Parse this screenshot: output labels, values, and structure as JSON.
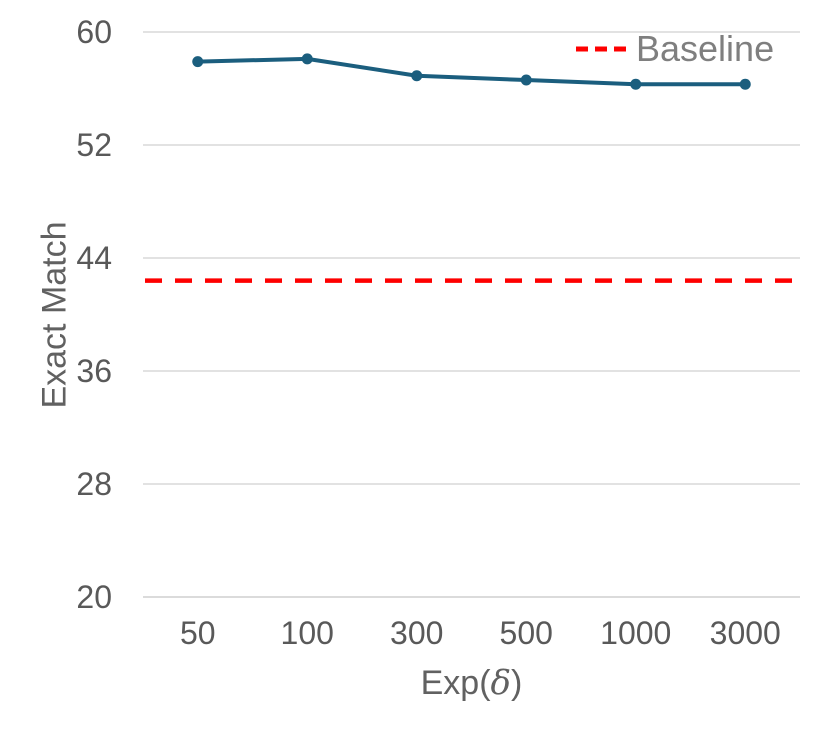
{
  "chart_data": {
    "type": "line",
    "xlabel": "Exp(δ)",
    "xlabel_parts": {
      "prefix": "Exp(",
      "symbol": "δ",
      "suffix": ")"
    },
    "ylabel": "Exact Match",
    "categories": [
      "50",
      "100",
      "300",
      "500",
      "1000",
      "3000"
    ],
    "series": [
      {
        "name": "Exact Match",
        "values": [
          57.9,
          58.1,
          56.9,
          56.6,
          56.3,
          56.3
        ],
        "color": "#1b5e7e",
        "marker": "circle",
        "style": "solid"
      }
    ],
    "baseline": {
      "label": "Baseline",
      "value": 42.4,
      "color": "#fe0000",
      "style": "dashed"
    },
    "ylim": [
      20,
      60
    ],
    "y_ticks": [
      60,
      52,
      44,
      36,
      28,
      20
    ],
    "grid": "horizontal",
    "legend_position": "top-right",
    "colors": {
      "axis_text": "#595959",
      "axis_title_text": "#616161",
      "legend_text": "#7f7f7f",
      "gridline": "#d9d9d9",
      "background": "#ffffff"
    }
  }
}
